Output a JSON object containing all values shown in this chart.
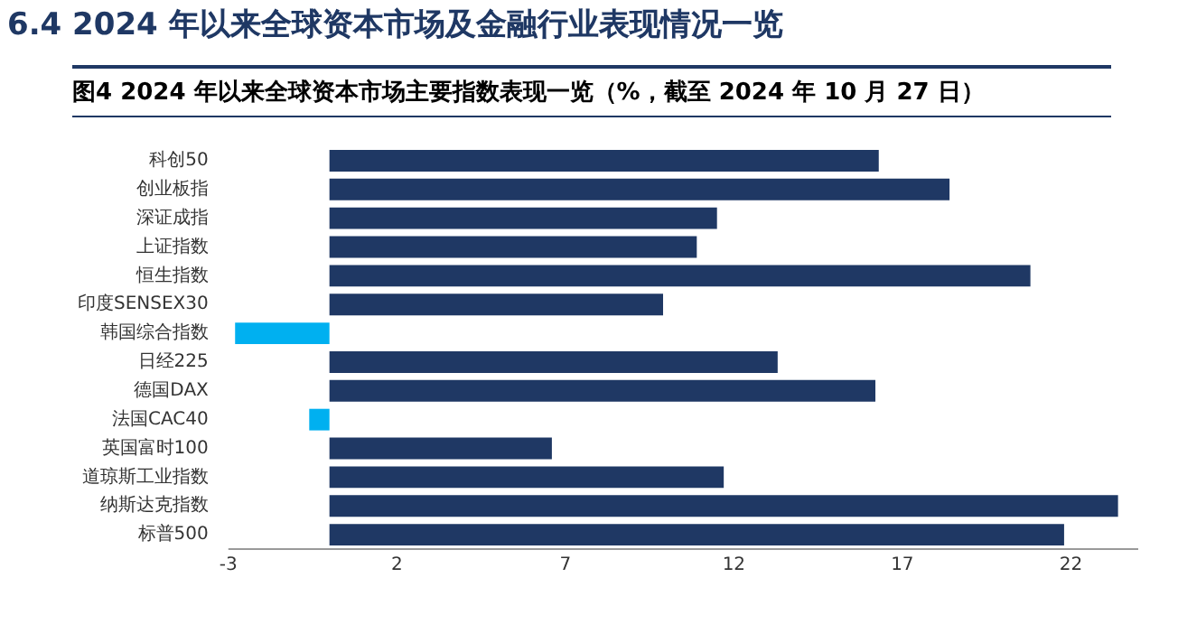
{
  "chart_data": {
    "type": "bar",
    "orientation": "horizontal",
    "title": "图4  2024 年以来全球资本市场主要指数表现一览（%，截至 2024 年 10 月 27 日）",
    "annotations": [
      "6.4 2024 年以来全球资本市场及金融行业表现情况一览"
    ],
    "categories": [
      "科创50",
      "创业板指",
      "深证成指",
      "上证指数",
      "恒生指数",
      "印度SENSEX30",
      "韩国综合指数",
      "日经225",
      "德国DAX",
      "法国CAC40",
      "英国富时100",
      "道琼斯工业指数",
      "纳斯达克指数",
      "标普500"
    ],
    "values": [
      16.3,
      18.4,
      11.5,
      10.9,
      20.8,
      9.9,
      -2.8,
      13.3,
      16.2,
      -0.6,
      6.6,
      11.7,
      23.4,
      21.8
    ],
    "colors": [
      "#1f3864",
      "#1f3864",
      "#1f3864",
      "#1f3864",
      "#1f3864",
      "#1f3864",
      "#00b0f0",
      "#1f3864",
      "#1f3864",
      "#00b0f0",
      "#1f3864",
      "#1f3864",
      "#1f3864",
      "#1f3864"
    ],
    "xlim": [
      -3,
      24
    ],
    "xticks": [
      -3,
      2,
      7,
      12,
      17,
      22
    ],
    "grid": false,
    "legend": false
  }
}
